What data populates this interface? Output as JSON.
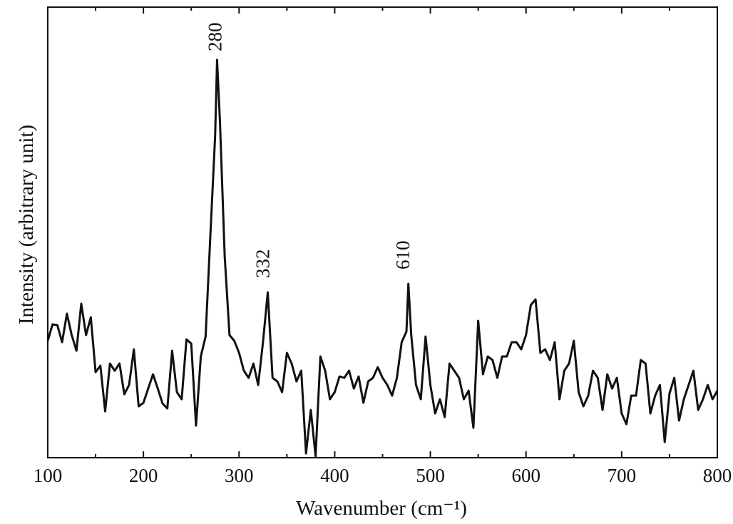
{
  "chart_data": {
    "type": "line",
    "xlabel": "Wavenumber (cm⁻¹)",
    "ylabel": "Intensity (arbitrary unit)",
    "xlim": [
      100,
      800
    ],
    "ylim": [
      0,
      632
    ],
    "xticks": [
      100,
      200,
      300,
      400,
      500,
      600,
      700,
      800
    ],
    "xminor_ticks": [
      150,
      250,
      350,
      450,
      550,
      650,
      750
    ],
    "color": "#111111",
    "annotations": [
      {
        "text": "280",
        "x": 277,
        "y": 570
      },
      {
        "text": "332",
        "x": 327,
        "y": 252
      },
      {
        "text": "610",
        "x": 473.5,
        "y": 264
      }
    ],
    "x": [
      100,
      105,
      110,
      115,
      120,
      125,
      130,
      135,
      140,
      145,
      150,
      155,
      160,
      165,
      170,
      175,
      180,
      185,
      190,
      195,
      200,
      205,
      210,
      215,
      220,
      225,
      230,
      235,
      240,
      245,
      250,
      255,
      260,
      265,
      270,
      275,
      277,
      280,
      285,
      290,
      295,
      300,
      305,
      310,
      315,
      320,
      325,
      330,
      335,
      340,
      345,
      350,
      355,
      360,
      365,
      370,
      375,
      380,
      385,
      390,
      395,
      400,
      405,
      410,
      415,
      420,
      425,
      430,
      435,
      440,
      445,
      450,
      455,
      460,
      465,
      470,
      475,
      477,
      480,
      485,
      490,
      495,
      500,
      505,
      510,
      515,
      520,
      525,
      530,
      535,
      540,
      545,
      550,
      555,
      560,
      565,
      570,
      575,
      580,
      585,
      590,
      595,
      600,
      605,
      610,
      615,
      620,
      625,
      630,
      635,
      640,
      645,
      650,
      655,
      660,
      665,
      670,
      675,
      680,
      685,
      690,
      695,
      700,
      705,
      710,
      715,
      720,
      725,
      730,
      735,
      740,
      745,
      750,
      755,
      760,
      765,
      770,
      775,
      780,
      785,
      790,
      795,
      800
    ],
    "values": [
      164,
      187,
      186,
      162,
      202,
      172,
      150,
      216,
      172,
      197,
      120,
      129,
      65,
      132,
      122,
      132,
      89,
      102,
      152,
      72,
      77,
      97,
      117,
      97,
      76,
      69,
      150,
      92,
      82,
      166,
      160,
      45,
      142,
      170,
      312,
      452,
      558,
      472,
      282,
      172,
      164,
      147,
      122,
      112,
      132,
      102,
      162,
      232,
      112,
      107,
      92,
      147,
      132,
      107,
      122,
      6,
      67,
      2,
      142,
      122,
      82,
      92,
      114,
      112,
      122,
      97,
      114,
      77,
      107,
      112,
      127,
      112,
      102,
      87,
      112,
      162,
      177,
      244,
      172,
      102,
      82,
      170,
      102,
      62,
      82,
      57,
      132,
      122,
      112,
      82,
      94,
      42,
      192,
      117,
      142,
      137,
      112,
      142,
      142,
      162,
      162,
      152,
      172,
      214,
      222,
      147,
      152,
      137,
      162,
      82,
      122,
      132,
      164,
      92,
      72,
      87,
      122,
      112,
      67,
      117,
      97,
      112,
      62,
      47,
      87,
      87,
      137,
      132,
      62,
      87,
      102,
      22,
      90,
      112,
      52,
      82,
      102,
      122,
      67,
      82,
      102,
      82,
      94
    ]
  }
}
